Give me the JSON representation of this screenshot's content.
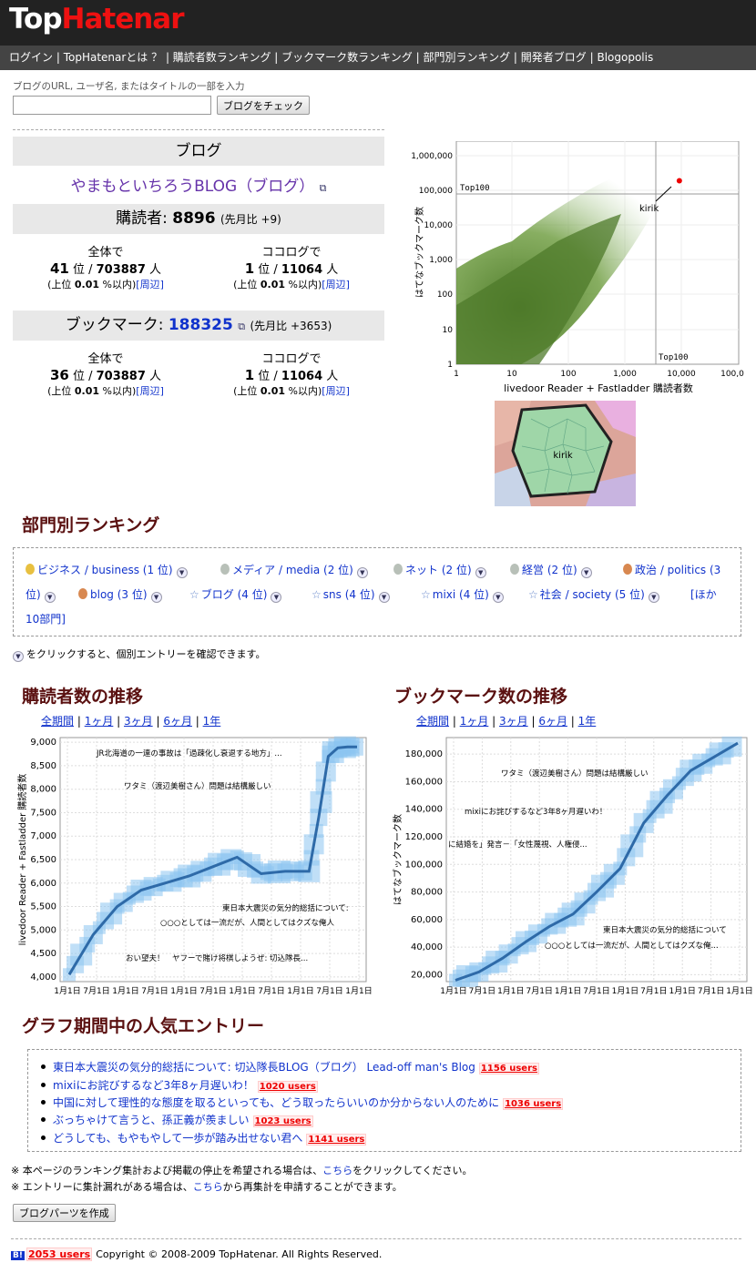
{
  "header": {
    "logo_part1": "Top",
    "logo_part2": "Hatenar"
  },
  "nav": {
    "items": [
      "ログイン",
      "TopHatenarとは ？",
      "購読者数ランキング",
      "ブックマーク数ランキング",
      "部門別ランキング",
      "開発者ブログ",
      "Blogopolis"
    ],
    "sep": " | "
  },
  "search": {
    "label": "ブログのURL, ユーザ名, またはタイトルの一部を入力",
    "value": "",
    "button": "ブログをチェック"
  },
  "blog": {
    "header": "ブログ",
    "title": "やまもといちろうBLOG（ブログ）",
    "subscribers_label": "購読者:",
    "subscribers": "8896",
    "subscribers_delta": "(先月比 +9)",
    "bookmarks_label": "ブックマーク:",
    "bookmarks": "188325",
    "bookmarks_delta": "(先月比 +3653)",
    "sub_ranks": [
      {
        "scope": "全体で",
        "rank": "41",
        "of": "703887",
        "pct": "0.01",
        "nearby": "[周辺]"
      },
      {
        "scope": "ココログで",
        "rank": "1",
        "of": "11064",
        "pct": "0.01",
        "nearby": "[周辺]"
      }
    ],
    "bm_ranks": [
      {
        "scope": "全体で",
        "rank": "36",
        "of": "703887",
        "pct": "0.01",
        "nearby": "[周辺]"
      },
      {
        "scope": "ココログで",
        "rank": "1",
        "of": "11064",
        "pct": "0.01",
        "nearby": "[周辺]"
      }
    ],
    "rank_unit": "位 /",
    "people": "人",
    "pct_prefix": "(上位",
    "pct_suffix": "%以内)"
  },
  "scatter": {
    "xlabel": "livedoor Reader + Fastladder 購読者数",
    "ylabel": "はてなブックマーク数",
    "xticks": [
      "1",
      "10",
      "100",
      "1,000",
      "10,000",
      "100,0"
    ],
    "yticks": [
      "1,000,000",
      "100,000",
      "10,000",
      "1,000",
      "100",
      "10",
      "1"
    ],
    "top100_a": "Top100",
    "top100_b": "Top100",
    "marker": "kirik",
    "point": {
      "x": 8896,
      "y": 188325
    }
  },
  "map": {
    "label": "kirik"
  },
  "categories": {
    "title": "部門別ランキング",
    "items": [
      {
        "label": "ビジネス / business (1 位)",
        "medal": "gold"
      },
      {
        "label": "メディア / media (2 位)",
        "medal": "silver"
      },
      {
        "label": "ネット (2 位)",
        "medal": "silver"
      },
      {
        "label": "経営 (2 位)",
        "medal": "silver"
      },
      {
        "label": "政治 / politics (3",
        "medal": "bronze"
      },
      {
        "label": "位)",
        "medal": "none"
      },
      {
        "label": "blog (3 位)",
        "medal": "bronze"
      },
      {
        "label": "ブログ (4 位)",
        "medal": "star"
      },
      {
        "label": "sns (4 位)",
        "medal": "star"
      },
      {
        "label": "mixi (4 位)",
        "medal": "star"
      },
      {
        "label": "社会 / society (5 位)",
        "medal": "star"
      },
      {
        "label": "[ほか",
        "medal": "none"
      },
      {
        "label": "10部門]",
        "medal": "none"
      }
    ],
    "hint": "をクリックすると、個別エントリーを確認できます。"
  },
  "sub_chart": {
    "title": "購読者数の推移",
    "periods": [
      "全期間",
      "1ヶ月",
      "3ヶ月",
      "6ヶ月",
      "1年"
    ],
    "ylabel": "livedoor Reader + Fastladder 購読者数",
    "yticks": [
      "9,000",
      "8,500",
      "8,000",
      "7,500",
      "7,000",
      "6,500",
      "6,000",
      "5,500",
      "5,000",
      "4,500",
      "4,000"
    ],
    "xticks": [
      "1月1日",
      "7月1日",
      "1月1日",
      "7月1日",
      "1月1日",
      "7月1日",
      "1月1日",
      "7月1日",
      "1月1日",
      "7月1日",
      "1月1日"
    ],
    "annotations": [
      "JR北海道の一連の事故は「過疎化し衰退する地方」...",
      "ワタミ（渡辺美樹さん）問題は結構厳しい",
      "東日本大震災の気分的総括について:",
      "○○○としては一流だが、人間としてはクズな俺人",
      "おい望夫！　ヤフーで賭け将棋しようぜ: 切込隊長..."
    ]
  },
  "chart_data": [
    {
      "type": "line",
      "title": "購読者数の推移",
      "ylabel": "livedoor Reader + Fastladder 購読者数",
      "ylim": [
        3900,
        9100
      ],
      "x": [
        0,
        0.5,
        1,
        1.5,
        2,
        2.5,
        3,
        3.5,
        4,
        4.5,
        5,
        5.2,
        5.4,
        5.6,
        5.8,
        6
      ],
      "values": [
        4050,
        4900,
        5500,
        5850,
        6000,
        6150,
        6350,
        6550,
        6200,
        6250,
        6250,
        7400,
        8700,
        8880,
        8900,
        8900
      ]
    },
    {
      "type": "line",
      "title": "ブックマーク数の推移",
      "ylabel": "はてなブックマーク数",
      "ylim": [
        15000,
        192000
      ],
      "x": [
        0,
        0.5,
        1,
        1.5,
        2,
        2.5,
        3,
        3.5,
        4,
        4.5,
        5,
        5.5,
        6
      ],
      "values": [
        16000,
        22000,
        32000,
        44000,
        55000,
        64000,
        80000,
        97000,
        130000,
        150000,
        168000,
        178000,
        188000
      ]
    }
  ],
  "bm_chart": {
    "title": "ブックマーク数の推移",
    "periods": [
      "全期間",
      "1ヶ月",
      "3ヶ月",
      "6ヶ月",
      "1年"
    ],
    "ylabel": "はてなブックマーク数",
    "yticks": [
      "180,000",
      "160,000",
      "140,000",
      "120,000",
      "100,000",
      "80,000",
      "60,000",
      "40,000",
      "20,000"
    ],
    "xticks": [
      "1月1日",
      "7月1日",
      "1月1日",
      "7月1日",
      "1月1日",
      "7月1日",
      "1月1日",
      "7月1日",
      "1月1日",
      "7月1日",
      "1月1日"
    ],
    "annotations": [
      "ワタミ（渡辺美樹さん）問題は結構厳しい",
      "mixiにお詫びするなど3年8ヶ月遅いわ！",
      "に結婚を」発言－「女性蔑視、人権侵...",
      "東日本大震災の気分的総括について",
      "○○○としては一流だが、人間としてはクズな俺..."
    ]
  },
  "popular": {
    "title": "グラフ期間中の人気エントリー",
    "entries": [
      {
        "text": "東日本大震災の気分的総括について: 切込隊長BLOG（ブログ） Lead-off man's Blog",
        "users": "1156 users"
      },
      {
        "text": "mixiにお詫びするなど3年8ヶ月遅いわ！",
        "users": "1020 users"
      },
      {
        "text": "中国に対して理性的な態度を取るといっても、どう取ったらいいのか分からない人のために",
        "users": "1036 users"
      },
      {
        "text": "ぶっちゃけて言うと、孫正義が羨ましい",
        "users": "1023 users"
      },
      {
        "text": "どうしても、もやもやして一歩が踏み出せない君へ",
        "users": "1141 users"
      }
    ]
  },
  "notes": {
    "n1_pre": "※ 本ページのランキング集計および掲載の停止を希望される場合は、",
    "n1_link": "こちら",
    "n1_post": "をクリックしてください。",
    "n2_pre": "※ エントリーに集計漏れがある場合は、",
    "n2_link": "こちら",
    "n2_post": "から再集計を申請することができます。"
  },
  "parts_button": "ブログパーツを作成",
  "footer": {
    "hb": "B!",
    "users": "2053 users",
    "copyright": "Copyright © 2008-2009 TopHatenar. All Rights Reserved."
  },
  "colors": {
    "accent_title": "#5a1010",
    "link": "#1133cc",
    "scatter_green": "#4e7a2a",
    "line_blue": "#2e6aa8",
    "glow_blue": "#8cc4f0"
  }
}
